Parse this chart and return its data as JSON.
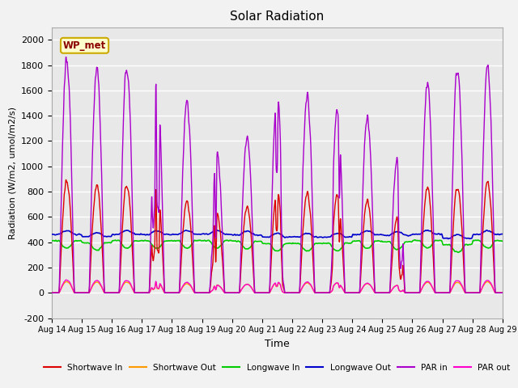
{
  "title": "Solar Radiation",
  "xlabel": "Time",
  "ylabel": "Radiation (W/m2, umol/m2/s)",
  "ylim": [
    -200,
    2100
  ],
  "yticks": [
    -200,
    0,
    200,
    400,
    600,
    800,
    1000,
    1200,
    1400,
    1600,
    1800,
    2000
  ],
  "xtick_labels": [
    "Aug 14",
    "Aug 15",
    "Aug 16",
    "Aug 17",
    "Aug 18",
    "Aug 19",
    "Aug 20",
    "Aug 21",
    "Aug 22",
    "Aug 23",
    "Aug 24",
    "Aug 25",
    "Aug 26",
    "Aug 27",
    "Aug 28",
    "Aug 29"
  ],
  "colors": {
    "shortwave_in": "#dd0000",
    "shortwave_out": "#ff9900",
    "longwave_in": "#00cc00",
    "longwave_out": "#0000cc",
    "par_in": "#aa00cc",
    "par_out": "#ff00cc"
  },
  "legend_labels": [
    "Shortwave In",
    "Shortwave Out",
    "Longwave In",
    "Longwave Out",
    "PAR in",
    "PAR out"
  ],
  "station_label": "WP_met",
  "background_color": "#e8e8e8",
  "days": 15,
  "points_per_day": 144
}
